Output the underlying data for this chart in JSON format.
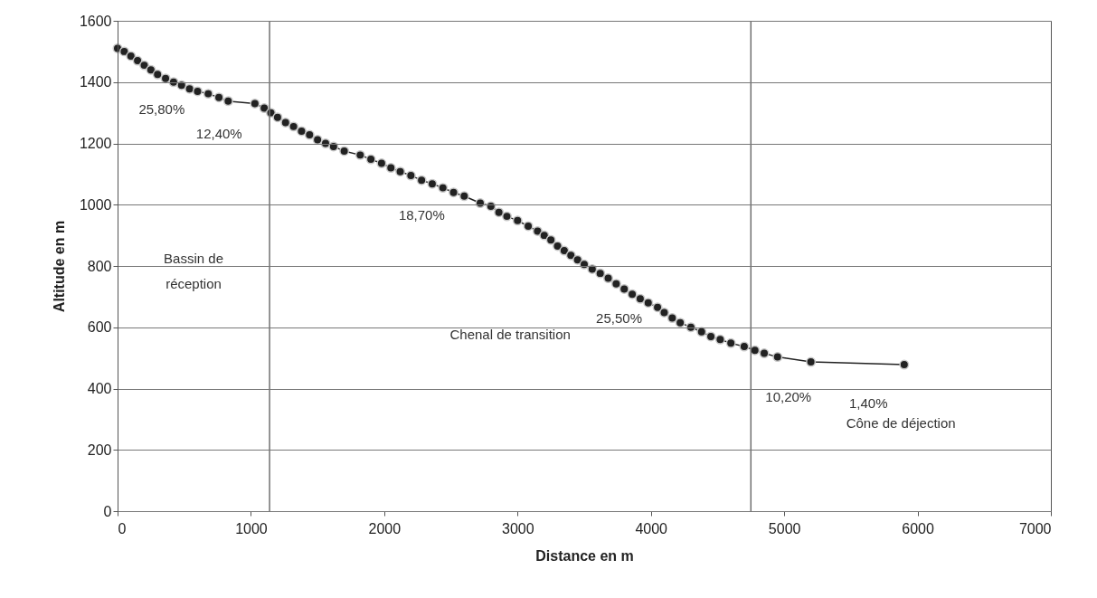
{
  "chart_data": {
    "type": "line",
    "xlabel": "Distance en m",
    "ylabel": "Altitude en m",
    "xlim": [
      0,
      7000
    ],
    "xticks": [
      0,
      1000,
      2000,
      3000,
      4000,
      5000,
      6000,
      7000
    ],
    "ylim": [
      0,
      1600
    ],
    "yticks": [
      0,
      200,
      400,
      600,
      800,
      1000,
      1200,
      1400,
      1600
    ],
    "grid": "y",
    "marker": "circle",
    "line_style": "solid",
    "series": [
      {
        "color": "#222222",
        "x": [
          0,
          50,
          100,
          150,
          200,
          250,
          300,
          360,
          420,
          480,
          540,
          600,
          680,
          760,
          830,
          1030,
          1100,
          1150,
          1200,
          1260,
          1320,
          1380,
          1440,
          1500,
          1560,
          1620,
          1700,
          1820,
          1900,
          1980,
          2050,
          2120,
          2200,
          2280,
          2360,
          2440,
          2520,
          2600,
          2720,
          2800,
          2860,
          2920,
          3000,
          3080,
          3150,
          3200,
          3250,
          3300,
          3350,
          3400,
          3450,
          3500,
          3560,
          3620,
          3680,
          3740,
          3800,
          3860,
          3920,
          3980,
          4050,
          4100,
          4160,
          4220,
          4300,
          4380,
          4450,
          4520,
          4600,
          4700,
          4780,
          4850,
          4950,
          5200,
          5900
        ],
        "values": [
          1510,
          1500,
          1485,
          1470,
          1455,
          1440,
          1425,
          1412,
          1400,
          1390,
          1378,
          1370,
          1362,
          1350,
          1338,
          1330,
          1315,
          1300,
          1285,
          1268,
          1255,
          1240,
          1228,
          1212,
          1200,
          1190,
          1175,
          1162,
          1148,
          1135,
          1120,
          1108,
          1095,
          1080,
          1068,
          1055,
          1040,
          1028,
          1005,
          995,
          975,
          962,
          948,
          930,
          914,
          900,
          885,
          865,
          850,
          835,
          820,
          805,
          790,
          776,
          760,
          742,
          725,
          708,
          693,
          680,
          665,
          648,
          630,
          615,
          600,
          585,
          570,
          560,
          548,
          537,
          525,
          515,
          503,
          487,
          478
        ]
      }
    ],
    "ref_lines": [
      {
        "axis": "x",
        "value": 1140,
        "color": "#707070"
      },
      {
        "axis": "x",
        "value": 4750,
        "color": "#707070"
      }
    ],
    "annotations": [
      "Bassin de\nréception",
      "Chenal de transition",
      "Cône de déjection",
      {
        "text": "25,80%",
        "x": 250,
        "y": 1440
      },
      {
        "text": "12,40%",
        "x": 680,
        "y": 1362
      },
      {
        "text": "18,70%",
        "x": 2200,
        "y": 1095
      },
      {
        "text": "25,50%",
        "x": 3680,
        "y": 760
      },
      {
        "text": "10,20%",
        "x": 4950,
        "y": 503
      },
      {
        "text": "1,40%",
        "x": 5550,
        "y": 482.5
      }
    ]
  }
}
